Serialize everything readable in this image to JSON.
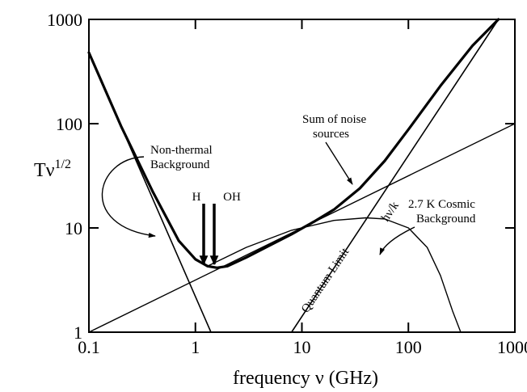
{
  "chart_data": {
    "type": "line",
    "title": "",
    "xlabel": "frequency ν (GHz)",
    "ylabel": "Tν",
    "ylabel_sup": "1/2",
    "x_scale": "log",
    "y_scale": "log",
    "xlim": [
      0.1,
      1000
    ],
    "ylim": [
      1,
      1000
    ],
    "x_ticks": [
      {
        "value": 0.1,
        "label": "0.1"
      },
      {
        "value": 1,
        "label": "1"
      },
      {
        "value": 10,
        "label": "10"
      },
      {
        "value": 100,
        "label": "100"
      },
      {
        "value": 1000,
        "label": "1000"
      }
    ],
    "y_ticks": [
      {
        "value": 1,
        "label": "1"
      },
      {
        "value": 10,
        "label": "10"
      },
      {
        "value": 100,
        "label": "100"
      },
      {
        "value": 1000,
        "label": "1000"
      }
    ],
    "grid": false,
    "legend": "none",
    "series": [
      {
        "key": "sum",
        "x": [
          0.1,
          0.2,
          0.4,
          0.7,
          1.0,
          1.3,
          1.6,
          2.0,
          3.0,
          5.0,
          8.0,
          13,
          20,
          35,
          60,
          100,
          200,
          400,
          700
        ],
        "y": [
          480,
          95,
          22,
          7.5,
          5.0,
          4.3,
          4.15,
          4.3,
          5.2,
          6.8,
          8.7,
          11.5,
          15,
          24,
          44,
          88,
          230,
          560,
          1000
        ]
      },
      {
        "key": "nonthermal",
        "x": [
          0.1,
          1.4
        ],
        "y": [
          480,
          1.0
        ]
      },
      {
        "key": "diagonal",
        "x": [
          0.1,
          1000
        ],
        "y": [
          1.0,
          100
        ]
      },
      {
        "key": "quantum",
        "x": [
          8,
          700
        ],
        "y": [
          1.0,
          1000
        ]
      },
      {
        "key": "cmb",
        "x": [
          1.3,
          3,
          8,
          20,
          40,
          60,
          100,
          150,
          200,
          260,
          310
        ],
        "y": [
          4.3,
          6.5,
          9.5,
          11.8,
          12.5,
          12.2,
          10.0,
          6.5,
          3.5,
          1.6,
          1.0
        ]
      }
    ],
    "annotations": {
      "h": "H",
      "oh": "OH",
      "nonthermal": [
        "Non-thermal",
        "Background"
      ],
      "sum": [
        "Sum of noise",
        "sources"
      ],
      "cmb": [
        "2.7 K Cosmic",
        "Background"
      ],
      "quantum": "Quantum Limit",
      "hvk": "hν/k"
    }
  }
}
